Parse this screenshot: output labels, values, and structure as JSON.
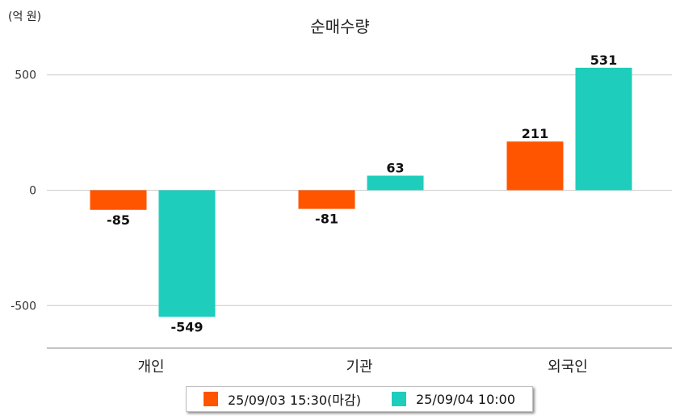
{
  "unit_label": "(억 원)",
  "colors": {
    "series1": "#ff5500",
    "series2": "#1ecdbb",
    "grid": "#cccccc",
    "axis": "#888888"
  },
  "chart_data": {
    "type": "bar",
    "title": "순매수량",
    "categories": [
      "개인",
      "기관",
      "외국인"
    ],
    "series": [
      {
        "name": "25/09/03 15:30(마감)",
        "values": [
          -85,
          -81,
          211
        ]
      },
      {
        "name": "25/09/04 10:00",
        "values": [
          -549,
          63,
          531
        ]
      }
    ],
    "yticks": [
      500,
      0,
      -500
    ],
    "ylim": [
      -690,
      590
    ],
    "grid": true,
    "legend": "bottom"
  }
}
